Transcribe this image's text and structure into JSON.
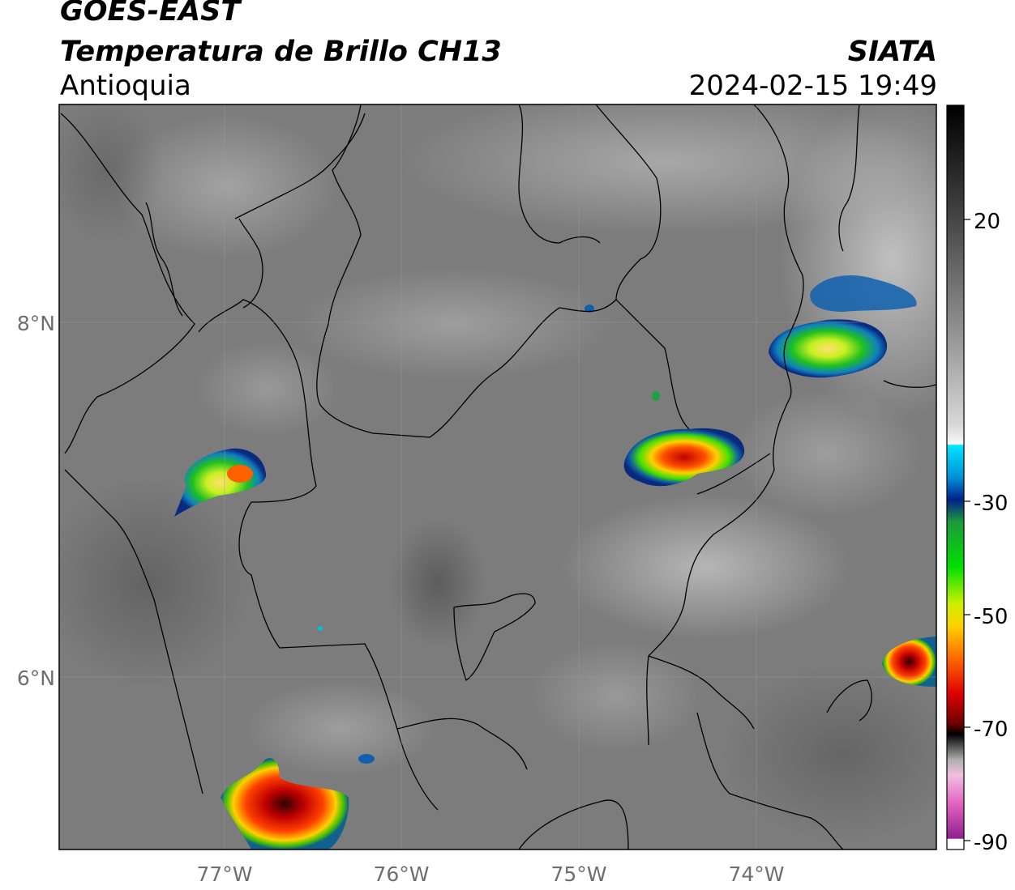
{
  "header": {
    "satellite": "GOES-EAST",
    "product": "Temperatura de Brillo CH13",
    "region": "Antioquia",
    "organization": "SIATA",
    "datetime": "2024-02-15 19:49"
  },
  "map": {
    "lon_range": [
      -77.93,
      -73.03
    ],
    "lat_range": [
      4.94,
      9.14
    ],
    "lat_labels": [
      "8°N",
      "6°N"
    ],
    "lon_labels": [
      "77°W",
      "76°W",
      "75°W",
      "74°W"
    ],
    "gridlines": true,
    "colors": {
      "background_gray": "#7a7a7a",
      "border": "#000000",
      "gridline": "#9a9a9a"
    }
  },
  "colorbar": {
    "range": [
      -90,
      40
    ],
    "tick_labels": [
      "20",
      "-30",
      "-50",
      "-70",
      "-90"
    ],
    "tick_values": [
      20,
      -30,
      -50,
      -70,
      -90
    ]
  }
}
